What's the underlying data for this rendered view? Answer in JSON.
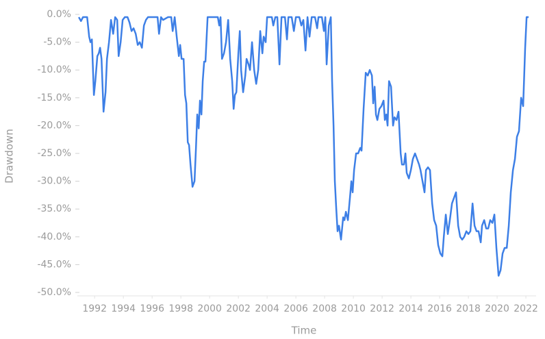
{
  "chart_data": {
    "type": "line",
    "x_label": "Time",
    "y_label": "Drawdown",
    "xlim": [
      1990.8,
      2022.33
    ],
    "xticks": [
      1992,
      1994,
      1996,
      1998,
      2000,
      2002,
      2004,
      2006,
      2008,
      2010,
      2012,
      2014,
      2016,
      2018,
      2020,
      2022
    ],
    "ylim": [
      -50,
      0
    ],
    "yticks": [
      {
        "value": 0,
        "label": "0.0%"
      },
      {
        "value": -5,
        "label": "-5.0%"
      },
      {
        "value": -10,
        "label": "-10.0%"
      },
      {
        "value": -15,
        "label": "-15.0%"
      },
      {
        "value": -20,
        "label": "-20.0%"
      },
      {
        "value": -25,
        "label": "-25.0%"
      },
      {
        "value": -30,
        "label": "-30.0%"
      },
      {
        "value": -35,
        "label": "-35.0%"
      },
      {
        "value": -40,
        "label": "-40.0%"
      },
      {
        "value": -45,
        "label": "-45.0%"
      },
      {
        "value": -50,
        "label": "-50.0%"
      }
    ],
    "grid": false,
    "series": [
      {
        "color": "#3d7fe6",
        "x": [
          1990.9,
          1991.05,
          1991.19,
          1991.48,
          1991.62,
          1991.71,
          1991.81,
          1991.95,
          1992.05,
          1992.19,
          1992.29,
          1992.38,
          1992.48,
          1992.62,
          1992.76,
          1992.86,
          1993.0,
          1993.14,
          1993.29,
          1993.43,
          1993.57,
          1993.67,
          1993.81,
          1993.95,
          1994.1,
          1994.29,
          1994.43,
          1994.57,
          1994.71,
          1994.86,
          1995.0,
          1995.14,
          1995.29,
          1995.43,
          1995.57,
          1995.71,
          1996.38,
          1996.48,
          1996.62,
          1996.76,
          1997.1,
          1997.33,
          1997.43,
          1997.57,
          1997.71,
          1997.86,
          1997.95,
          1998.05,
          1998.19,
          1998.29,
          1998.38,
          1998.48,
          1998.57,
          1998.67,
          1998.81,
          1998.95,
          1999.05,
          1999.14,
          1999.24,
          1999.33,
          1999.43,
          1999.52,
          1999.62,
          1999.71,
          1999.86,
          2000.57,
          2000.67,
          2000.76,
          2000.86,
          2001.0,
          2001.14,
          2001.29,
          2001.43,
          2001.57,
          2001.67,
          2001.76,
          2001.86,
          2002.0,
          2002.1,
          2002.19,
          2002.33,
          2002.48,
          2002.57,
          2002.71,
          2002.81,
          2002.95,
          2003.1,
          2003.24,
          2003.38,
          2003.52,
          2003.67,
          2003.76,
          2003.9,
          2004.0,
          2004.33,
          2004.43,
          2004.57,
          2004.71,
          2004.86,
          2005.0,
          2005.24,
          2005.38,
          2005.48,
          2005.71,
          2005.86,
          2006.0,
          2006.24,
          2006.38,
          2006.52,
          2006.67,
          2006.81,
          2006.95,
          2007.1,
          2007.33,
          2007.48,
          2007.57,
          2007.81,
          2007.95,
          2008.05,
          2008.14,
          2008.29,
          2008.43,
          2008.52,
          2008.62,
          2008.71,
          2008.81,
          2008.9,
          2009.0,
          2009.14,
          2009.29,
          2009.38,
          2009.48,
          2009.62,
          2009.76,
          2009.86,
          2009.95,
          2010.05,
          2010.19,
          2010.33,
          2010.48,
          2010.57,
          2010.71,
          2010.86,
          2011.0,
          2011.14,
          2011.29,
          2011.38,
          2011.48,
          2011.57,
          2011.67,
          2011.81,
          2011.95,
          2012.1,
          2012.19,
          2012.29,
          2012.38,
          2012.48,
          2012.62,
          2012.76,
          2012.86,
          2013.0,
          2013.14,
          2013.29,
          2013.38,
          2013.52,
          2013.62,
          2013.71,
          2013.86,
          2014.0,
          2014.14,
          2014.29,
          2014.43,
          2014.57,
          2014.67,
          2014.81,
          2014.95,
          2015.05,
          2015.19,
          2015.33,
          2015.48,
          2015.62,
          2015.76,
          2015.9,
          2016.05,
          2016.19,
          2016.29,
          2016.43,
          2016.57,
          2016.71,
          2016.86,
          2017.0,
          2017.14,
          2017.29,
          2017.43,
          2017.57,
          2017.71,
          2017.86,
          2018.0,
          2018.14,
          2018.29,
          2018.43,
          2018.57,
          2018.71,
          2018.86,
          2018.95,
          2019.1,
          2019.24,
          2019.38,
          2019.52,
          2019.67,
          2019.81,
          2019.95,
          2020.1,
          2020.24,
          2020.38,
          2020.52,
          2020.67,
          2020.81,
          2020.95,
          2021.1,
          2021.24,
          2021.38,
          2021.52,
          2021.67,
          2021.81,
          2021.95,
          2022.05,
          2022.19
        ],
        "values": [
          -0.5,
          -1.2,
          -0.5,
          -0.5,
          -4,
          -5,
          -4.5,
          -14.5,
          -12,
          -7.5,
          -7,
          -6,
          -8,
          -17.5,
          -14,
          -8,
          -5,
          -1,
          -3.5,
          -0.5,
          -1,
          -7.5,
          -5,
          -1,
          -0.5,
          -0.5,
          -1.5,
          -3,
          -2.5,
          -3.5,
          -5.5,
          -5,
          -6,
          -2,
          -1,
          -0.5,
          -0.5,
          -3.5,
          -0.5,
          -1,
          -0.5,
          -0.5,
          -3,
          -0.5,
          -4,
          -7.5,
          -5.5,
          -8,
          -8,
          -14.5,
          -16,
          -23,
          -23.5,
          -27,
          -31,
          -30,
          -24,
          -18,
          -20.5,
          -15.5,
          -18,
          -12,
          -8.5,
          -8.5,
          -0.5,
          -0.5,
          -2,
          -0.5,
          -8,
          -7,
          -5,
          -1,
          -8,
          -12,
          -17,
          -14.5,
          -14,
          -7,
          -3,
          -10,
          -14,
          -11,
          -8,
          -9,
          -10,
          -5,
          -10,
          -12.5,
          -10,
          -3,
          -7,
          -4,
          -5,
          -0.5,
          -0.5,
          -2,
          -0.5,
          -0.5,
          -9,
          -0.5,
          -0.5,
          -4.5,
          -0.5,
          -0.5,
          -3,
          -0.5,
          -0.5,
          -2,
          -1,
          -6.5,
          -0.5,
          -4,
          -0.5,
          -0.5,
          -2.5,
          -0.5,
          -0.5,
          -3,
          -0.5,
          -9,
          -2,
          -0.5,
          -12,
          -20,
          -30,
          -35,
          -39,
          -38,
          -40.5,
          -36.5,
          -37,
          -35.5,
          -37,
          -33,
          -30,
          -32,
          -28,
          -25,
          -25,
          -24,
          -24.5,
          -17,
          -10.5,
          -11,
          -10,
          -11,
          -16,
          -13,
          -18,
          -19,
          -17,
          -16.5,
          -15.5,
          -19,
          -18,
          -20,
          -12,
          -13,
          -20,
          -18.5,
          -19,
          -17.5,
          -25,
          -27,
          -27,
          -25,
          -28.5,
          -29.5,
          -28,
          -26,
          -25,
          -26,
          -27,
          -28,
          -30,
          -32,
          -28,
          -27.5,
          -28,
          -34,
          -37,
          -38,
          -41.5,
          -43,
          -43.5,
          -40,
          -36,
          -39.5,
          -37,
          -34,
          -33,
          -32,
          -38,
          -40,
          -40.5,
          -40,
          -39,
          -39.5,
          -39,
          -34,
          -38,
          -39,
          -39,
          -41,
          -38,
          -37,
          -38.5,
          -38.5,
          -37,
          -37.5,
          -36,
          -42,
          -47,
          -46,
          -43,
          -42,
          -42,
          -38,
          -32,
          -28,
          -26,
          -22,
          -21,
          -15,
          -16.5,
          -6,
          -0.5,
          -0.5
        ]
      }
    ]
  }
}
